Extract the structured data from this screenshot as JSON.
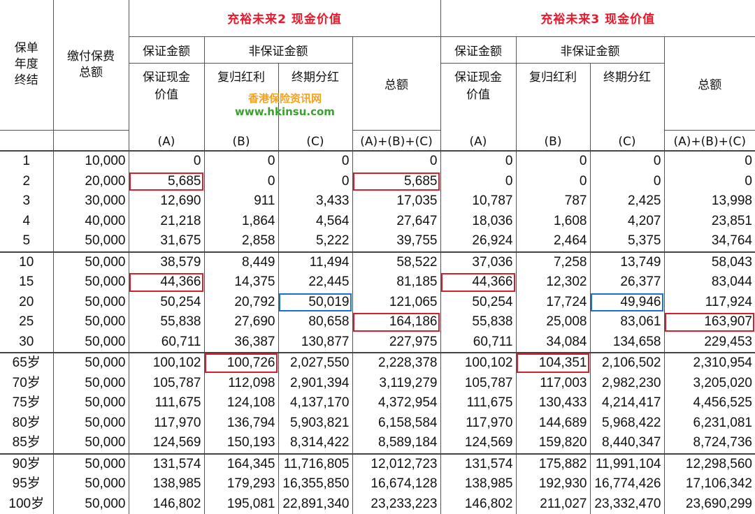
{
  "titles": {
    "plan2": "充裕未来2 现金价值",
    "plan3": "充裕未来3 现金价值"
  },
  "header": {
    "policy_year": "保单\n年度\n终结",
    "premium_total": "缴付保费\n总额",
    "guaranteed_amount": "保证金额",
    "non_guaranteed_amount": "非保证金额",
    "guaranteed_cash_value": "保证现金\n价值",
    "reversionary_bonus": "复归红利",
    "terminal_dividend": "终期分红",
    "total": "总额",
    "col_a": "(A)",
    "col_b": "(B)",
    "col_c": "(C)",
    "col_sum": "(A)+(B)+(C)"
  },
  "watermark": {
    "line1": "香港保险资讯网",
    "line2": "www.hkinsu.com"
  },
  "rows": [
    [
      "1",
      "10,000",
      "0",
      "0",
      "0",
      "0",
      "0",
      "0",
      "0",
      "0"
    ],
    [
      "2",
      "20,000",
      "5,685",
      "0",
      "0",
      "5,685",
      "0",
      "0",
      "0",
      "0"
    ],
    [
      "3",
      "30,000",
      "12,690",
      "911",
      "3,433",
      "17,035",
      "10,787",
      "787",
      "2,425",
      "13,998"
    ],
    [
      "4",
      "40,000",
      "21,218",
      "1,864",
      "4,564",
      "27,647",
      "18,036",
      "1,608",
      "4,207",
      "23,851"
    ],
    [
      "5",
      "50,000",
      "31,675",
      "2,858",
      "5,222",
      "39,755",
      "26,924",
      "2,464",
      "5,375",
      "34,764"
    ],
    [
      "10",
      "50,000",
      "38,579",
      "8,449",
      "11,494",
      "58,522",
      "37,036",
      "7,258",
      "13,749",
      "58,043"
    ],
    [
      "15",
      "50,000",
      "44,366",
      "14,375",
      "22,445",
      "81,185",
      "44,366",
      "12,302",
      "26,377",
      "83,044"
    ],
    [
      "20",
      "50,000",
      "50,254",
      "20,792",
      "50,019",
      "121,065",
      "50,254",
      "17,724",
      "49,946",
      "117,924"
    ],
    [
      "25",
      "50,000",
      "55,838",
      "27,690",
      "80,658",
      "164,186",
      "55,838",
      "25,008",
      "83,061",
      "163,907"
    ],
    [
      "30",
      "50,000",
      "60,711",
      "36,387",
      "130,877",
      "227,975",
      "60,711",
      "34,084",
      "134,658",
      "229,453"
    ],
    [
      "65岁",
      "50,000",
      "100,102",
      "100,726",
      "2,027,550",
      "2,228,378",
      "100,102",
      "104,351",
      "2,106,502",
      "2,310,954"
    ],
    [
      "70岁",
      "50,000",
      "105,787",
      "112,098",
      "2,901,394",
      "3,119,279",
      "105,787",
      "117,003",
      "2,982,230",
      "3,205,020"
    ],
    [
      "75岁",
      "50,000",
      "111,675",
      "124,108",
      "4,137,170",
      "4,372,954",
      "111,675",
      "130,433",
      "4,214,417",
      "4,456,525"
    ],
    [
      "80岁",
      "50,000",
      "117,970",
      "136,794",
      "5,903,821",
      "6,158,584",
      "117,970",
      "144,689",
      "5,968,422",
      "6,231,081"
    ],
    [
      "85岁",
      "50,000",
      "124,569",
      "150,193",
      "8,314,422",
      "8,589,184",
      "124,569",
      "159,820",
      "8,440,347",
      "8,724,736"
    ],
    [
      "90岁",
      "50,000",
      "131,574",
      "164,345",
      "11,716,805",
      "12,012,723",
      "131,574",
      "175,882",
      "11,991,104",
      "12,298,560"
    ],
    [
      "95岁",
      "50,000",
      "138,985",
      "179,293",
      "16,355,850",
      "16,674,128",
      "138,985",
      "192,930",
      "16,774,426",
      "17,106,342"
    ],
    [
      "100岁",
      "50,000",
      "146,802",
      "195,081",
      "22,891,340",
      "23,233,223",
      "146,802",
      "211,027",
      "23,332,470",
      "23,690,299"
    ]
  ],
  "highlight_color_red": "#d51e2e",
  "highlight_color_blue": "#1a6fd0",
  "title_color": "#e8192c"
}
